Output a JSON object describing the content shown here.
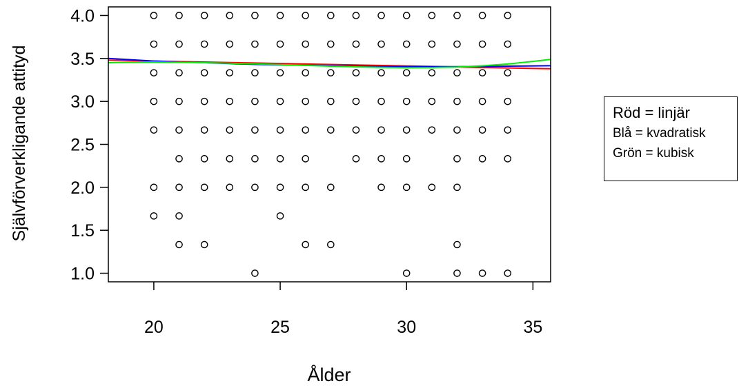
{
  "chart_data": {
    "type": "scatter",
    "title": "",
    "xlabel": "Ålder",
    "ylabel": "Självförverkligande attityd",
    "xlim": [
      18.2,
      35.7
    ],
    "ylim": [
      0.9,
      4.1
    ],
    "xticks": [
      20,
      25,
      30,
      35
    ],
    "xtick_labels": [
      "20",
      "25",
      "30",
      "35"
    ],
    "yticks": [
      1.0,
      1.5,
      2.0,
      2.5,
      3.0,
      3.5,
      4.0
    ],
    "ytick_labels": [
      "1.0",
      "1.5",
      "2.0",
      "2.5",
      "3.0",
      "3.5",
      "4.0"
    ],
    "grid": false,
    "points": [
      [
        20,
        4.0
      ],
      [
        20,
        3.667
      ],
      [
        20,
        3.333
      ],
      [
        20,
        3.0
      ],
      [
        20,
        2.667
      ],
      [
        20,
        2.0
      ],
      [
        20,
        1.667
      ],
      [
        21,
        4.0
      ],
      [
        21,
        3.667
      ],
      [
        21,
        3.333
      ],
      [
        21,
        3.0
      ],
      [
        21,
        2.667
      ],
      [
        21,
        2.333
      ],
      [
        21,
        2.0
      ],
      [
        21,
        1.667
      ],
      [
        21,
        1.333
      ],
      [
        22,
        4.0
      ],
      [
        22,
        3.667
      ],
      [
        22,
        3.333
      ],
      [
        22,
        3.0
      ],
      [
        22,
        2.667
      ],
      [
        22,
        2.333
      ],
      [
        22,
        2.0
      ],
      [
        22,
        1.333
      ],
      [
        23,
        4.0
      ],
      [
        23,
        3.667
      ],
      [
        23,
        3.333
      ],
      [
        23,
        3.0
      ],
      [
        23,
        2.667
      ],
      [
        23,
        2.333
      ],
      [
        23,
        2.0
      ],
      [
        24,
        4.0
      ],
      [
        24,
        3.667
      ],
      [
        24,
        3.333
      ],
      [
        24,
        3.0
      ],
      [
        24,
        2.667
      ],
      [
        24,
        2.333
      ],
      [
        24,
        2.0
      ],
      [
        24,
        1.0
      ],
      [
        25,
        4.0
      ],
      [
        25,
        3.667
      ],
      [
        25,
        3.333
      ],
      [
        25,
        3.0
      ],
      [
        25,
        2.667
      ],
      [
        25,
        2.333
      ],
      [
        25,
        2.0
      ],
      [
        25,
        1.667
      ],
      [
        26,
        4.0
      ],
      [
        26,
        3.667
      ],
      [
        26,
        3.333
      ],
      [
        26,
        3.0
      ],
      [
        26,
        2.667
      ],
      [
        26,
        2.333
      ],
      [
        26,
        2.0
      ],
      [
        26,
        1.333
      ],
      [
        27,
        4.0
      ],
      [
        27,
        3.667
      ],
      [
        27,
        3.333
      ],
      [
        27,
        3.0
      ],
      [
        27,
        2.667
      ],
      [
        27,
        2.0
      ],
      [
        27,
        1.333
      ],
      [
        28,
        4.0
      ],
      [
        28,
        3.667
      ],
      [
        28,
        3.333
      ],
      [
        28,
        3.0
      ],
      [
        28,
        2.667
      ],
      [
        28,
        2.333
      ],
      [
        29,
        4.0
      ],
      [
        29,
        3.667
      ],
      [
        29,
        3.333
      ],
      [
        29,
        3.0
      ],
      [
        29,
        2.667
      ],
      [
        29,
        2.333
      ],
      [
        29,
        2.0
      ],
      [
        30,
        4.0
      ],
      [
        30,
        3.667
      ],
      [
        30,
        3.333
      ],
      [
        30,
        3.0
      ],
      [
        30,
        2.667
      ],
      [
        30,
        2.333
      ],
      [
        30,
        2.0
      ],
      [
        30,
        1.0
      ],
      [
        31,
        4.0
      ],
      [
        31,
        3.667
      ],
      [
        31,
        3.333
      ],
      [
        31,
        3.0
      ],
      [
        31,
        2.667
      ],
      [
        31,
        2.0
      ],
      [
        32,
        4.0
      ],
      [
        32,
        3.667
      ],
      [
        32,
        3.333
      ],
      [
        32,
        3.0
      ],
      [
        32,
        2.667
      ],
      [
        32,
        2.333
      ],
      [
        32,
        2.0
      ],
      [
        32,
        1.333
      ],
      [
        32,
        1.0
      ],
      [
        33,
        4.0
      ],
      [
        33,
        3.667
      ],
      [
        33,
        3.333
      ],
      [
        33,
        3.0
      ],
      [
        33,
        2.667
      ],
      [
        33,
        2.333
      ],
      [
        33,
        1.0
      ],
      [
        34,
        4.0
      ],
      [
        34,
        3.667
      ],
      [
        34,
        3.333
      ],
      [
        34,
        3.0
      ],
      [
        34,
        2.667
      ],
      [
        34,
        2.333
      ],
      [
        34,
        1.0
      ]
    ],
    "fit_lines": [
      {
        "kind": "linjär",
        "color": "#ff0000",
        "x": [
          18.2,
          35.7
        ],
        "y": [
          3.48,
          3.38
        ]
      },
      {
        "kind": "kvadratisk",
        "color": "#0000ff",
        "x": [
          18.2,
          20,
          22,
          24,
          26,
          28,
          30,
          32,
          34,
          35.7
        ],
        "y": [
          3.5,
          3.47,
          3.45,
          3.43,
          3.42,
          3.41,
          3.405,
          3.405,
          3.41,
          3.415
        ]
      },
      {
        "kind": "kubisk",
        "color": "#00ee00",
        "x": [
          18.2,
          19,
          20,
          21,
          22,
          23,
          24,
          25,
          26,
          27,
          28,
          29,
          30,
          31,
          32,
          33,
          34,
          35,
          35.7
        ],
        "y": [
          3.45,
          3.456,
          3.458,
          3.455,
          3.45,
          3.444,
          3.437,
          3.428,
          3.419,
          3.41,
          3.402,
          3.396,
          3.393,
          3.394,
          3.401,
          3.414,
          3.435,
          3.466,
          3.49
        ]
      }
    ],
    "colors": {
      "points": "#000000",
      "axis": "#000000"
    }
  },
  "legend": {
    "lines": [
      "Röd = linjär",
      "Blå = kvadratisk",
      "Grön = kubisk"
    ]
  }
}
